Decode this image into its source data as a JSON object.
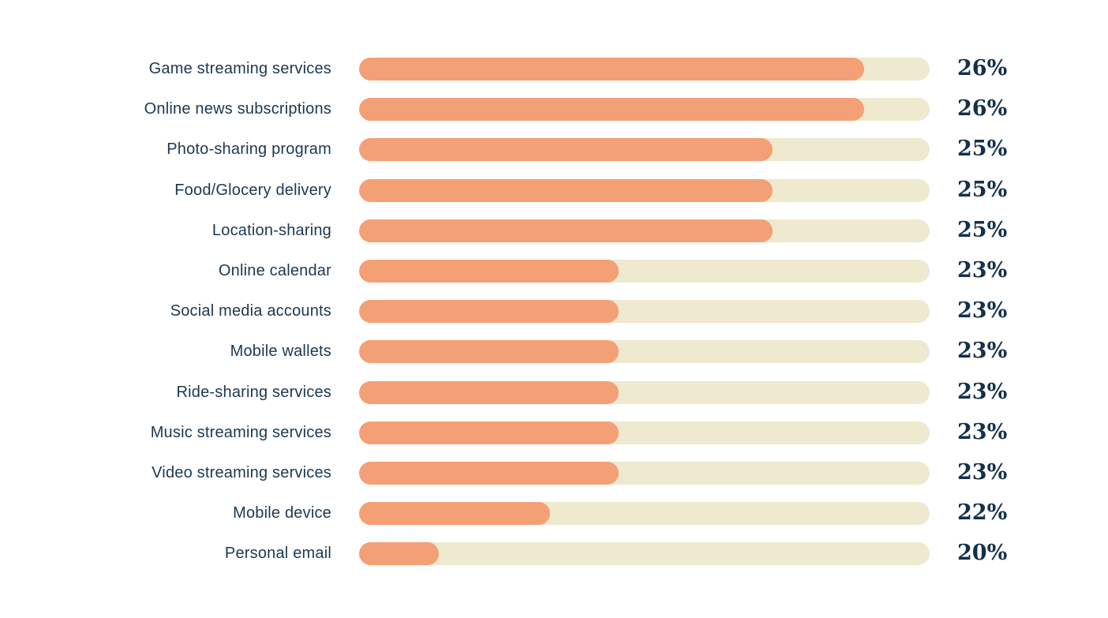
{
  "colors": {
    "background": "#ffffff",
    "bar_fill": "#f4a076",
    "bar_track": "#eee9cf",
    "label_text": "#1c3850",
    "value_text": "#14304a"
  },
  "chart_data": {
    "type": "bar",
    "orientation": "horizontal",
    "title": "",
    "xlabel": "",
    "ylabel": "",
    "grid": false,
    "legend": null,
    "categories": [
      "Game streaming services",
      "Online news subscriptions",
      "Photo-sharing program",
      "Food/Glocery delivery",
      "Location-sharing",
      "Online calendar",
      "Social media accounts",
      "Mobile wallets",
      "Ride-sharing services",
      "Music streaming services",
      "Video streaming services",
      "Mobile device",
      "Personal email"
    ],
    "values": [
      26,
      26,
      25,
      25,
      25,
      23,
      23,
      23,
      23,
      23,
      23,
      22,
      20
    ],
    "value_labels": [
      "26%",
      "26%",
      "25%",
      "25%",
      "25%",
      "23%",
      "23%",
      "23%",
      "23%",
      "23%",
      "23%",
      "22%",
      "20%"
    ],
    "bar_fill_pct": [
      88.5,
      88.5,
      72.5,
      72.5,
      72.5,
      45.5,
      45.5,
      45.5,
      45.5,
      45.5,
      45.5,
      33.5,
      14
    ]
  }
}
